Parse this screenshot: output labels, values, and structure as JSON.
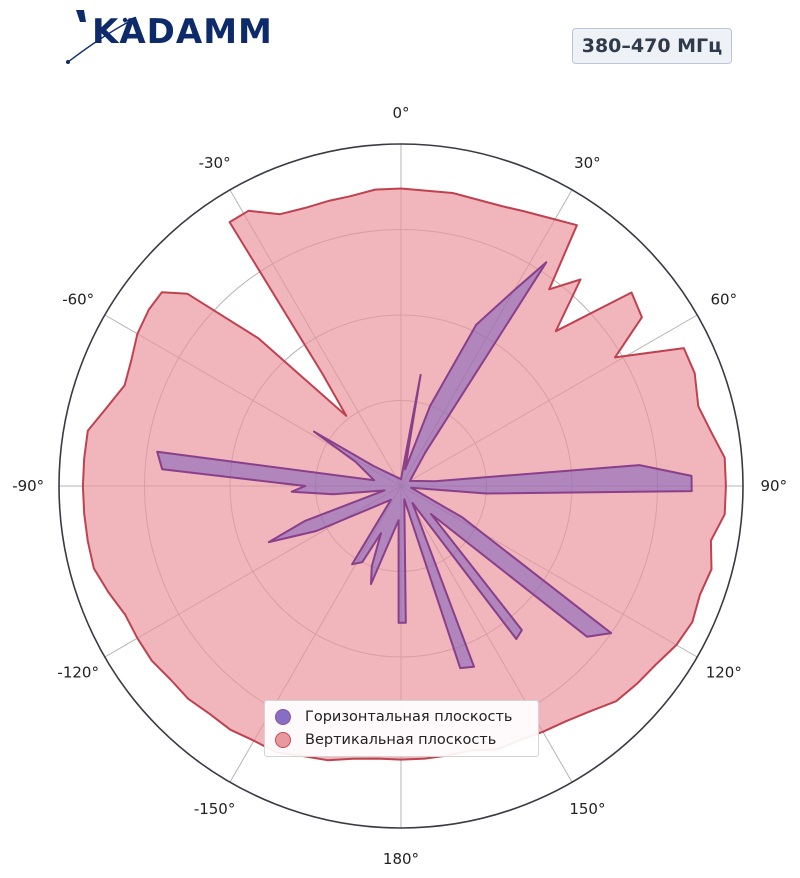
{
  "header": {
    "brand_name": "KADAMM",
    "band_label": "380–470 МГц"
  },
  "colors": {
    "horizontal_fill": "#7b5fc0",
    "horizontal_stroke": "#8a3f8a",
    "vertical_fill": "#e9939b",
    "vertical_stroke": "#c0414f",
    "brand": "#0d2b6b"
  },
  "chart_data": {
    "type": "polar",
    "title": "",
    "theta_direction": "clockwise",
    "theta_zero": "top",
    "angle_ticks": [
      "0°",
      "30°",
      "60°",
      "90°",
      "120°",
      "150°",
      "180°",
      "-150°",
      "-120°",
      "-90°",
      "-60°",
      "-30°"
    ],
    "r_range": [
      0,
      1
    ],
    "grid": true,
    "legend_position": "bottom-center",
    "series": [
      {
        "name": "Горизонтальная плоскость",
        "points": [
          [
            0,
            0.02
          ],
          [
            10,
            0.33
          ],
          [
            14,
            0.05
          ],
          [
            20,
            0.25
          ],
          [
            25,
            0.52
          ],
          [
            30,
            0.66
          ],
          [
            33,
            0.78
          ],
          [
            36,
            0.12
          ],
          [
            60,
            0.03
          ],
          [
            82,
            0.1
          ],
          [
            85,
            0.7
          ],
          [
            88,
            0.85
          ],
          [
            91,
            0.85
          ],
          [
            95,
            0.25
          ],
          [
            100,
            0.03
          ],
          [
            117,
            0.2
          ],
          [
            125,
            0.75
          ],
          [
            129,
            0.7
          ],
          [
            133,
            0.12
          ],
          [
            140,
            0.55
          ],
          [
            143,
            0.56
          ],
          [
            146,
            0.06
          ],
          [
            158,
            0.57
          ],
          [
            162,
            0.56
          ],
          [
            166,
            0.04
          ],
          [
            178,
            0.4
          ],
          [
            181,
            0.4
          ],
          [
            184,
            0.1
          ],
          [
            197,
            0.3
          ],
          [
            200,
            0.25
          ],
          [
            203,
            0.15
          ],
          [
            207,
            0.25
          ],
          [
            212,
            0.27
          ],
          [
            216,
            0.05
          ],
          [
            242,
            0.28
          ],
          [
            247,
            0.42
          ],
          [
            250,
            0.3
          ],
          [
            255,
            0.05
          ],
          [
            263,
            0.2
          ],
          [
            267,
            0.32
          ],
          [
            270,
            0.28
          ],
          [
            274,
            0.7
          ],
          [
            278,
            0.72
          ],
          [
            282,
            0.08
          ],
          [
            298,
            0.15
          ],
          [
            302,
            0.3
          ],
          [
            306,
            0.1
          ],
          [
            360,
            0.02
          ]
        ]
      },
      {
        "name": "Вертикальная плоскость",
        "points": [
          [
            0,
            0.87
          ],
          [
            10,
            0.87
          ],
          [
            20,
            0.87
          ],
          [
            24,
            0.88
          ],
          [
            30,
            0.9
          ],
          [
            34,
            0.92
          ],
          [
            37,
            0.72
          ],
          [
            41,
            0.8
          ],
          [
            45,
            0.64
          ],
          [
            50,
            0.88
          ],
          [
            55,
            0.86
          ],
          [
            59,
            0.73
          ],
          [
            64,
            0.92
          ],
          [
            69,
            0.92
          ],
          [
            75,
            0.9
          ],
          [
            80,
            0.92
          ],
          [
            85,
            0.95
          ],
          [
            90,
            0.95
          ],
          [
            95,
            0.95
          ],
          [
            100,
            0.92
          ],
          [
            105,
            0.94
          ],
          [
            110,
            0.93
          ],
          [
            115,
            0.94
          ],
          [
            120,
            0.93
          ],
          [
            125,
            0.91
          ],
          [
            130,
            0.9
          ],
          [
            135,
            0.89
          ],
          [
            140,
            0.86
          ],
          [
            145,
            0.84
          ],
          [
            150,
            0.83
          ],
          [
            155,
            0.82
          ],
          [
            160,
            0.82
          ],
          [
            165,
            0.8
          ],
          [
            170,
            0.8
          ],
          [
            175,
            0.8
          ],
          [
            180,
            0.8
          ],
          [
            185,
            0.8
          ],
          [
            190,
            0.81
          ],
          [
            195,
            0.83
          ],
          [
            200,
            0.84
          ],
          [
            205,
            0.86
          ],
          [
            210,
            0.86
          ],
          [
            215,
            0.87
          ],
          [
            220,
            0.87
          ],
          [
            225,
            0.88
          ],
          [
            230,
            0.88
          ],
          [
            235,
            0.89
          ],
          [
            240,
            0.89
          ],
          [
            245,
            0.89
          ],
          [
            250,
            0.91
          ],
          [
            255,
            0.93
          ],
          [
            260,
            0.93
          ],
          [
            265,
            0.93
          ],
          [
            270,
            0.93
          ],
          [
            275,
            0.93
          ],
          [
            280,
            0.93
          ],
          [
            285,
            0.89
          ],
          [
            290,
            0.86
          ],
          [
            295,
            0.87
          ],
          [
            300,
            0.89
          ],
          [
            305,
            0.9
          ],
          [
            309,
            0.9
          ],
          [
            312,
            0.84
          ],
          [
            316,
            0.6
          ],
          [
            322,
            0.26
          ],
          [
            325,
            0.4
          ],
          [
            327,
            0.92
          ],
          [
            331,
            0.92
          ],
          [
            336,
            0.87
          ],
          [
            341,
            0.86
          ],
          [
            346,
            0.86
          ],
          [
            350,
            0.86
          ],
          [
            355,
            0.87
          ],
          [
            360,
            0.87
          ]
        ]
      }
    ]
  }
}
